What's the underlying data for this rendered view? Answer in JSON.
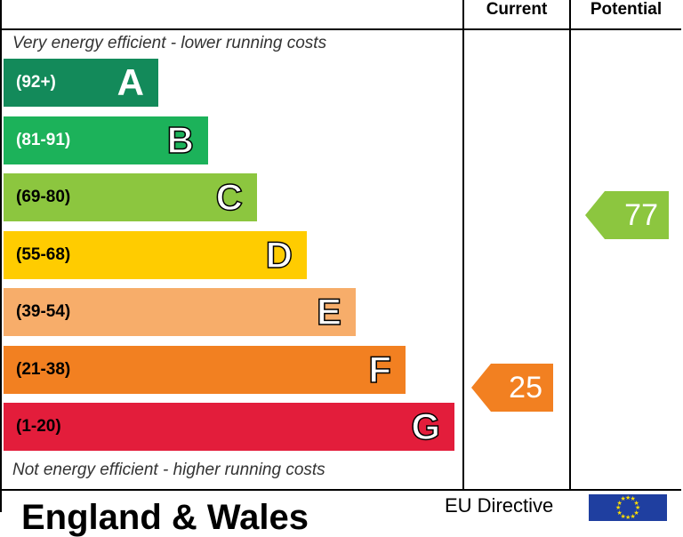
{
  "chart_data": {
    "type": "bar",
    "title": "",
    "columns": {
      "current": "Current",
      "potential": "Potential"
    },
    "captions": {
      "top": "Very energy efficient - lower running costs",
      "bottom": "Not energy efficient - higher running costs"
    },
    "bands": [
      {
        "letter": "A",
        "range": "(92+)",
        "color": "#138a5a"
      },
      {
        "letter": "B",
        "range": "(81-91)",
        "color": "#1cb25a"
      },
      {
        "letter": "C",
        "range": "(69-80)",
        "color": "#8cc63f"
      },
      {
        "letter": "D",
        "range": "(55-68)",
        "color": "#ffcc00"
      },
      {
        "letter": "E",
        "range": "(39-54)",
        "color": "#f7ad6a"
      },
      {
        "letter": "F",
        "range": "(21-38)",
        "color": "#f28021"
      },
      {
        "letter": "G",
        "range": "(1-20)",
        "color": "#e31d3b"
      }
    ],
    "ratings": {
      "current": {
        "value": 25,
        "band": "F",
        "color": "#f28021"
      },
      "potential": {
        "value": 77,
        "band": "C",
        "color": "#8cc63f"
      }
    }
  },
  "footer": {
    "region": "England & Wales",
    "directive": "EU Directive"
  }
}
